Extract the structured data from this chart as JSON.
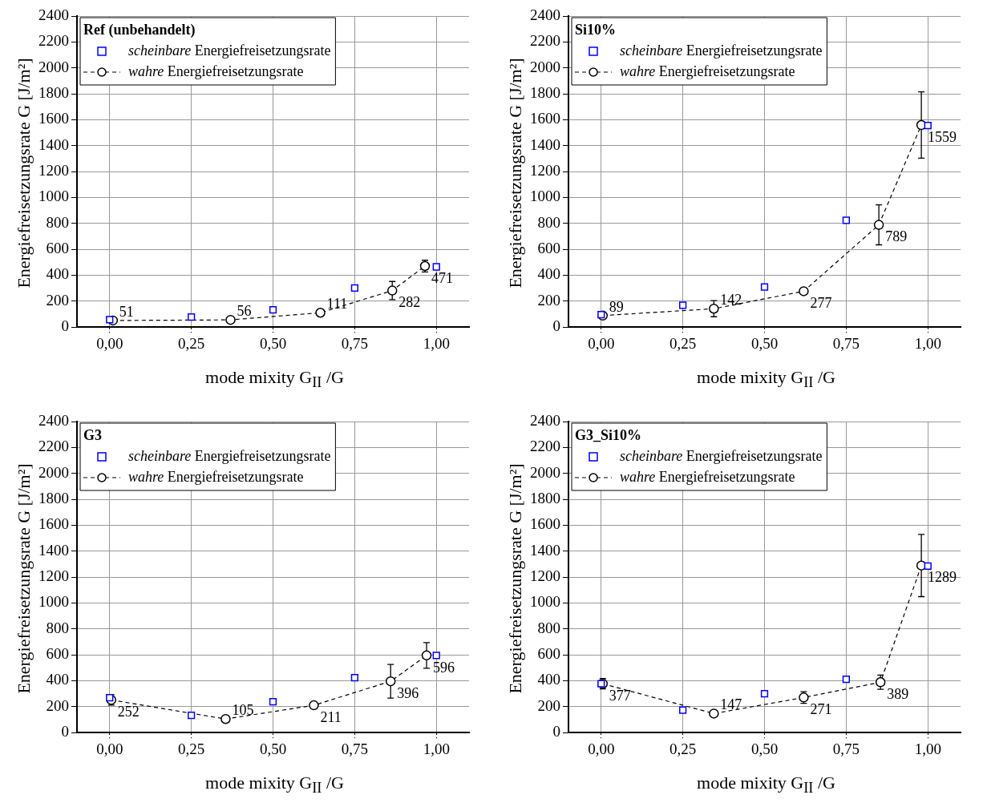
{
  "chart_data": [
    {
      "type": "scatter",
      "xlabel": "mode mixity G$_{II}$ /G",
      "ylabel": "Energiefreisetzungsrate G  [J/m²]",
      "legend_title": "Ref (unbehandelt)",
      "legend": "top left",
      "grid": true,
      "xlim": [
        -0.1,
        1.1
      ],
      "xticks": [
        {
          "value": 0,
          "label": "0,00"
        },
        {
          "value": 0.25,
          "label": "0,25"
        },
        {
          "value": 0.5,
          "label": "0,50"
        },
        {
          "value": 0.75,
          "label": "0,75"
        },
        {
          "value": 1,
          "label": "1,00"
        }
      ],
      "ylim": [
        0,
        2400
      ],
      "yticks": [
        0,
        200,
        400,
        600,
        800,
        1000,
        1200,
        1400,
        1600,
        1800,
        2000,
        2200,
        2400
      ],
      "series": [
        {
          "name": "scheinbare Energiefreisetzungsrate",
          "type": "scatter",
          "color": "#0000ff",
          "marker": "square",
          "x": [
            0,
            0.25,
            0.5,
            0.75,
            1
          ],
          "values": [
            57,
            78,
            133,
            302,
            465
          ]
        },
        {
          "name": "wahre Energiefreisetzungsrate",
          "type": "line",
          "color": "#000000",
          "marker": "circle",
          "line_style": "dashed",
          "x": [
            0.01,
            0.37,
            0.645,
            0.865,
            0.965
          ],
          "values": [
            51,
            56,
            111,
            282,
            471
          ],
          "errors": [
            null,
            null,
            null,
            70,
            45
          ],
          "value_labels": [
            "51",
            "56",
            "111",
            "282",
            "471"
          ]
        }
      ]
    },
    {
      "type": "scatter",
      "xlabel": "mode mixity G$_{II}$ /G",
      "ylabel": "Energiefreisetzungsrate G  [J/m²]",
      "legend_title": "Si10%",
      "legend": "top left",
      "grid": true,
      "xlim": [
        -0.1,
        1.1
      ],
      "xticks": [
        {
          "value": 0,
          "label": "0,00"
        },
        {
          "value": 0.25,
          "label": "0,25"
        },
        {
          "value": 0.5,
          "label": "0,50"
        },
        {
          "value": 0.75,
          "label": "0,75"
        },
        {
          "value": 1,
          "label": "1,00"
        }
      ],
      "ylim": [
        0,
        2400
      ],
      "yticks": [
        0,
        200,
        400,
        600,
        800,
        1000,
        1200,
        1400,
        1600,
        1800,
        2000,
        2200,
        2400
      ],
      "series": [
        {
          "name": "scheinbare Energiefreisetzungsrate",
          "type": "scatter",
          "color": "#0000ff",
          "marker": "square",
          "x": [
            0,
            0.25,
            0.5,
            0.75,
            1
          ],
          "values": [
            96,
            169,
            310,
            824,
            1555
          ]
        },
        {
          "name": "wahre Energiefreisetzungsrate",
          "type": "line",
          "color": "#000000",
          "marker": "circle",
          "line_style": "dashed",
          "x": [
            0.005,
            0.345,
            0.62,
            0.85,
            0.98
          ],
          "values": [
            89,
            142,
            277,
            789,
            1559
          ],
          "errors": [
            null,
            62,
            null,
            154,
            256
          ],
          "value_labels": [
            "89",
            "142",
            "277",
            "789",
            "1559"
          ]
        }
      ]
    },
    {
      "type": "scatter",
      "xlabel": "mode mixity G$_{II}$ /G",
      "ylabel": "Energiefreisetzungsrate G  [J/m²]",
      "legend_title": "G3",
      "legend": "top left",
      "grid": true,
      "xlim": [
        -0.1,
        1.1
      ],
      "xticks": [
        {
          "value": 0,
          "label": "0,00"
        },
        {
          "value": 0.25,
          "label": "0,25"
        },
        {
          "value": 0.5,
          "label": "0,50"
        },
        {
          "value": 0.75,
          "label": "0,75"
        },
        {
          "value": 1,
          "label": "1,00"
        }
      ],
      "ylim": [
        0,
        2400
      ],
      "yticks": [
        0,
        200,
        400,
        600,
        800,
        1000,
        1200,
        1400,
        1600,
        1800,
        2000,
        2200,
        2400
      ],
      "series": [
        {
          "name": "scheinbare Energiefreisetzungsrate",
          "type": "scatter",
          "color": "#0000ff",
          "marker": "square",
          "x": [
            0,
            0.25,
            0.5,
            0.75,
            1
          ],
          "values": [
            269,
            133,
            239,
            424,
            596
          ]
        },
        {
          "name": "wahre Energiefreisetzungsrate",
          "type": "line",
          "color": "#000000",
          "marker": "circle",
          "line_style": "dashed",
          "x": [
            0.005,
            0.355,
            0.625,
            0.86,
            0.97
          ],
          "values": [
            252,
            105,
            211,
            396,
            596
          ],
          "errors": [
            40,
            null,
            null,
            130,
            99
          ],
          "value_labels": [
            "252",
            "105",
            "211",
            "396",
            "596"
          ]
        }
      ]
    },
    {
      "type": "scatter",
      "xlabel": "mode mixity G$_{II}$ /G",
      "ylabel": "Energiefreisetzungsrate G  [J/m²]",
      "legend_title": "G3_Si10%",
      "legend": "top left",
      "grid": true,
      "xlim": [
        -0.1,
        1.1
      ],
      "xticks": [
        {
          "value": 0,
          "label": "0,00"
        },
        {
          "value": 0.25,
          "label": "0,25"
        },
        {
          "value": 0.5,
          "label": "0,50"
        },
        {
          "value": 0.75,
          "label": "0,75"
        },
        {
          "value": 1,
          "label": "1,00"
        }
      ],
      "ylim": [
        0,
        2400
      ],
      "yticks": [
        0,
        200,
        400,
        600,
        800,
        1000,
        1200,
        1400,
        1600,
        1800,
        2000,
        2200,
        2400
      ],
      "series": [
        {
          "name": "scheinbare Energiefreisetzungsrate",
          "type": "scatter",
          "color": "#0000ff",
          "marker": "square",
          "x": [
            0,
            0.25,
            0.5,
            0.75,
            1
          ],
          "values": [
            378,
            173,
            300,
            412,
            1285
          ]
        },
        {
          "name": "wahre Energiefreisetzungsrate",
          "type": "line",
          "color": "#000000",
          "marker": "circle",
          "line_style": "dashed",
          "x": [
            0.005,
            0.345,
            0.62,
            0.855,
            0.98
          ],
          "values": [
            377,
            147,
            271,
            389,
            1289
          ],
          "errors": [
            40,
            null,
            45,
            55,
            240
          ],
          "value_labels": [
            "377",
            "147",
            "271",
            "389",
            "1289"
          ]
        }
      ]
    }
  ]
}
